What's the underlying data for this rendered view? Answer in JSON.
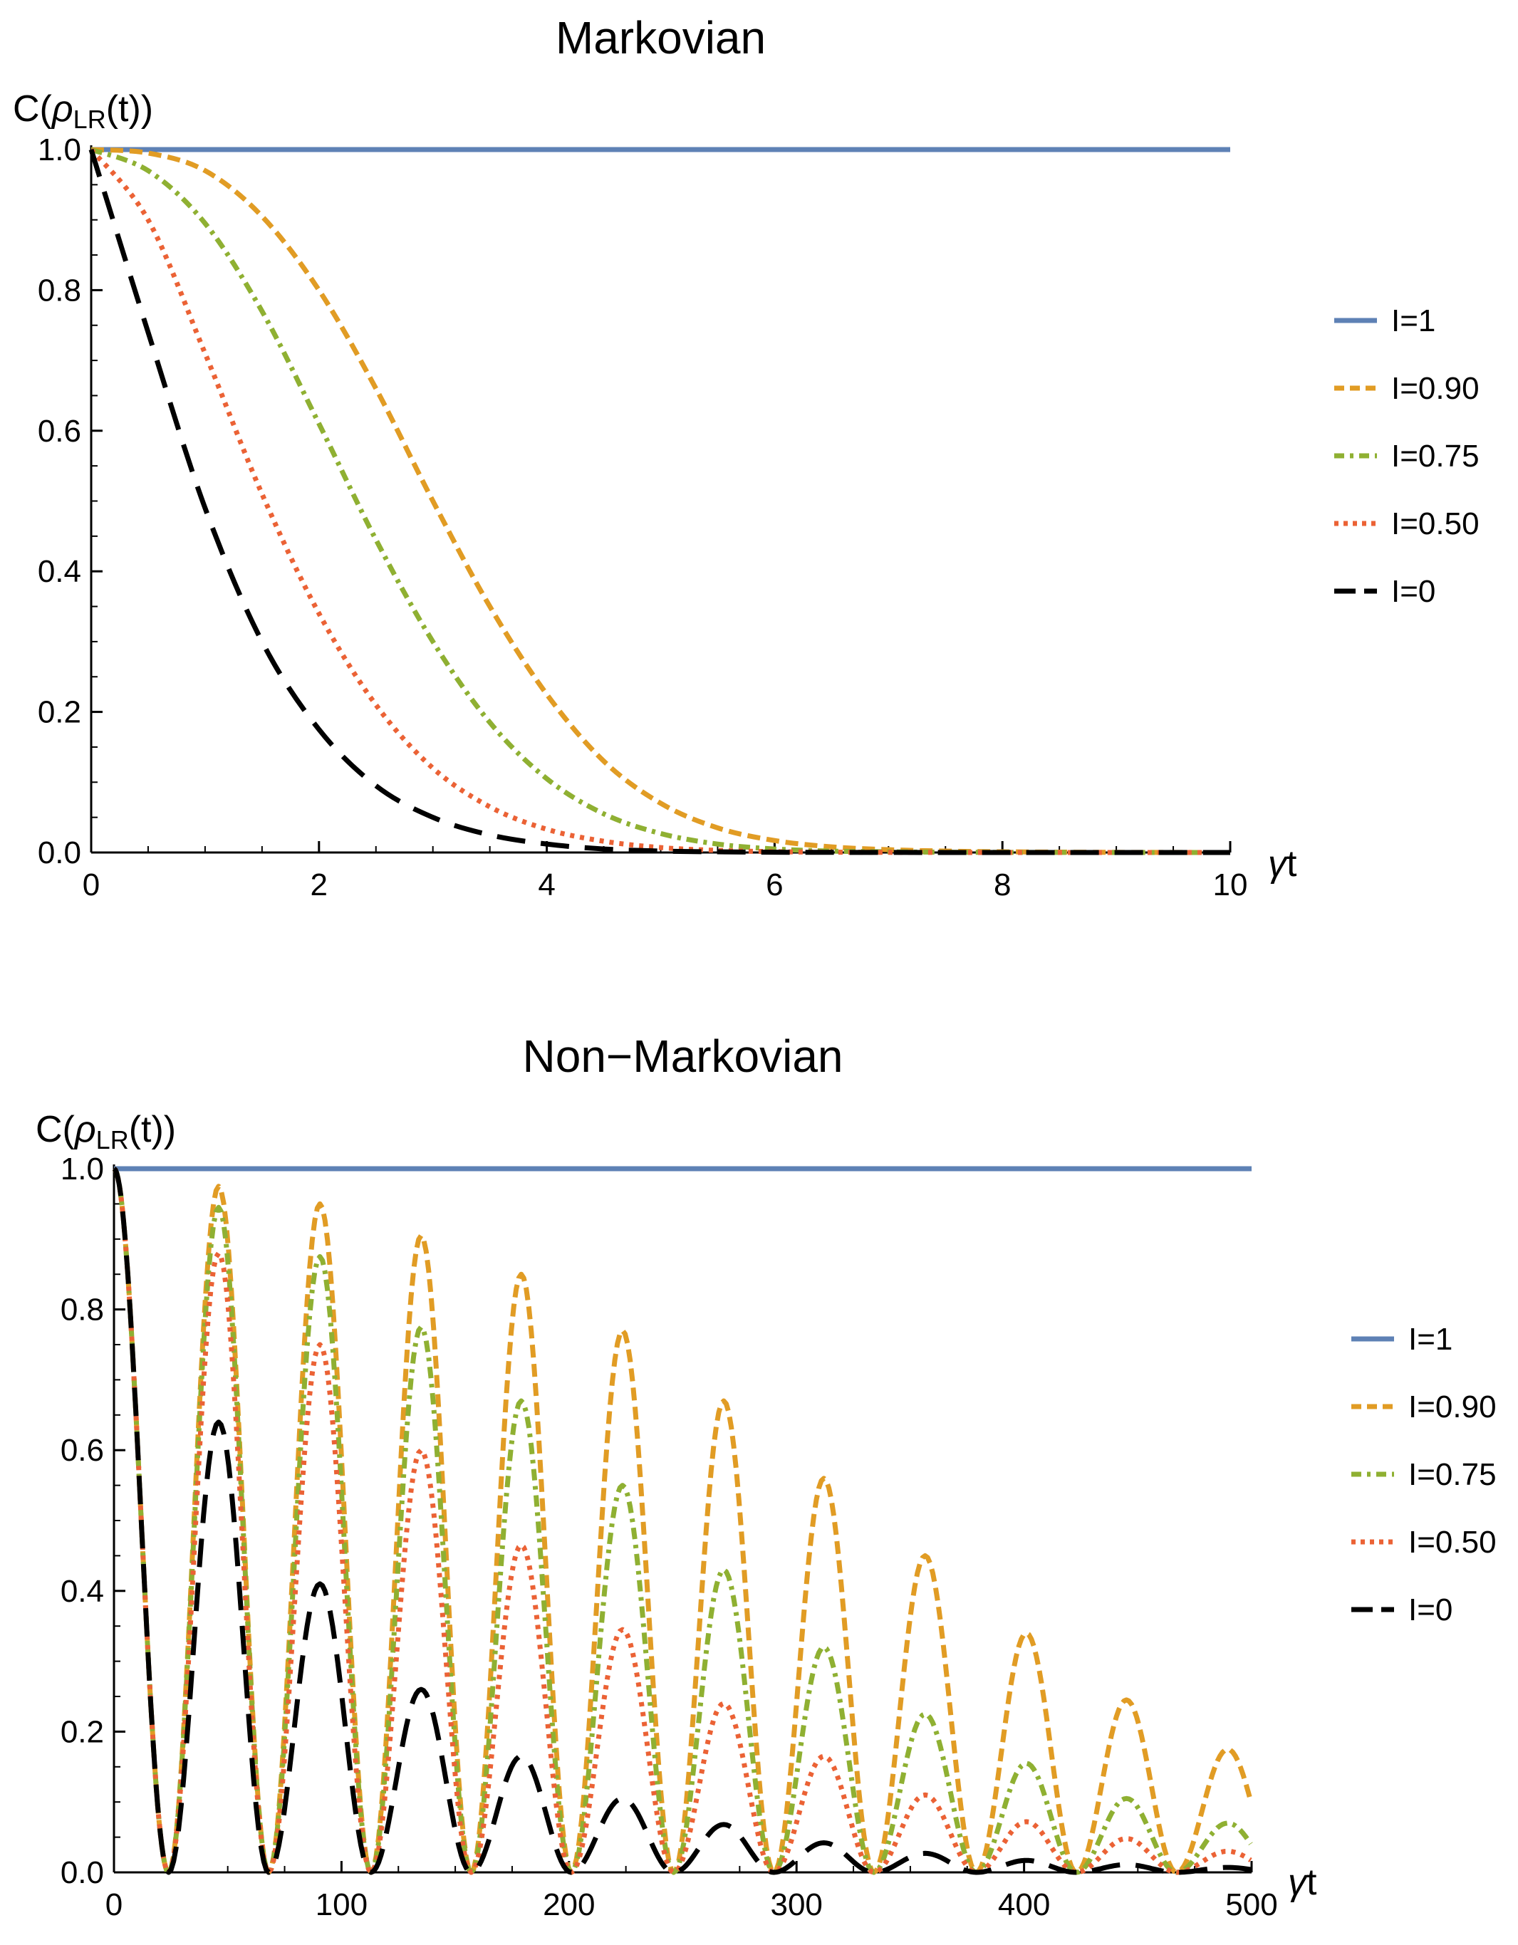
{
  "chart_data": [
    {
      "type": "line",
      "title": "Markovian",
      "xlabel": "γt",
      "ylabel": "C(ρLR(t))",
      "xlim": [
        0,
        10
      ],
      "ylim": [
        0,
        1
      ],
      "xticks": [
        "0",
        "2",
        "4",
        "6",
        "8",
        "10"
      ],
      "yticks": [
        "0.0",
        "0.2",
        "0.4",
        "0.6",
        "0.8",
        "1.0"
      ],
      "legend_position": "right",
      "x": [
        0,
        0.5,
        1,
        1.5,
        2,
        2.5,
        3,
        3.5,
        4,
        4.5,
        5,
        5.5,
        6,
        6.5,
        7,
        7.5,
        8,
        8.5,
        9,
        9.5,
        10
      ],
      "series": [
        {
          "name": "I=1",
          "color": "#5e81b5",
          "style": "solid",
          "values": [
            1,
            1,
            1,
            1,
            1,
            1,
            1,
            1,
            1,
            1,
            1,
            1,
            1,
            1,
            1,
            1,
            1,
            1,
            1,
            1,
            1
          ]
        },
        {
          "name": "I=0.90",
          "color": "#e19c24",
          "style": "dashed",
          "values": [
            1,
            0.995,
            0.97,
            0.905,
            0.8,
            0.66,
            0.5,
            0.35,
            0.225,
            0.13,
            0.07,
            0.035,
            0.017,
            0.008,
            0.004,
            0.002,
            0.001,
            0.0005,
            0.0002,
            0.0001,
            0
          ]
        },
        {
          "name": "I=0.75",
          "color": "#8fb032",
          "style": "dotdashed",
          "values": [
            1,
            0.97,
            0.895,
            0.77,
            0.61,
            0.445,
            0.3,
            0.185,
            0.105,
            0.055,
            0.027,
            0.012,
            0.005,
            0.002,
            0.001,
            0.0004,
            0.0002,
            0.0001,
            0,
            0,
            0
          ]
        },
        {
          "name": "I=0.50",
          "color": "#eb6235",
          "style": "dotted",
          "values": [
            1,
            0.9,
            0.71,
            0.51,
            0.34,
            0.21,
            0.12,
            0.065,
            0.033,
            0.016,
            0.007,
            0.003,
            0.0012,
            0.0005,
            0.0002,
            0.0001,
            0,
            0,
            0,
            0,
            0
          ]
        },
        {
          "name": "I=0",
          "color": "#000000",
          "style": "longdash",
          "values": [
            1,
            0.74,
            0.49,
            0.3,
            0.175,
            0.095,
            0.05,
            0.025,
            0.012,
            0.005,
            0.002,
            0.001,
            0.0004,
            0.0002,
            0.0001,
            0,
            0,
            0,
            0,
            0,
            0
          ]
        }
      ]
    },
    {
      "type": "line",
      "title": "Non−Markovian",
      "xlabel": "γt",
      "ylabel": "C(ρLR(t))",
      "xlim": [
        0,
        500
      ],
      "ylim": [
        0,
        1
      ],
      "xticks": [
        "0",
        "100",
        "200",
        "300",
        "400",
        "500"
      ],
      "yticks": [
        "0.0",
        "0.2",
        "0.4",
        "0.6",
        "0.8",
        "1.0"
      ],
      "legend_position": "right",
      "oscillation": {
        "zeros": [
          0,
          24,
          68,
          113,
          157,
          201,
          246,
          290,
          334,
          379,
          423,
          467,
          512
        ],
        "description_note": ""
      },
      "series": [
        {
          "name": "I=1",
          "color": "#5e81b5",
          "style": "solid",
          "peaks": [
            1,
            1,
            1,
            1,
            1,
            1,
            1,
            1,
            1,
            1,
            1,
            1
          ],
          "flat": true
        },
        {
          "name": "I=0.90",
          "color": "#e19c24",
          "style": "dashed",
          "peaks": [
            1,
            0.975,
            0.95,
            0.905,
            0.85,
            0.77,
            0.67,
            0.56,
            0.45,
            0.34,
            0.245,
            0.175
          ]
        },
        {
          "name": "I=0.75",
          "color": "#8fb032",
          "style": "dotdashed",
          "peaks": [
            1,
            0.945,
            0.875,
            0.775,
            0.67,
            0.55,
            0.43,
            0.32,
            0.225,
            0.155,
            0.105,
            0.07
          ]
        },
        {
          "name": "I=0.50",
          "color": "#eb6235",
          "style": "dotted",
          "peaks": [
            1,
            0.88,
            0.75,
            0.6,
            0.465,
            0.345,
            0.24,
            0.165,
            0.11,
            0.072,
            0.048,
            0.03
          ]
        },
        {
          "name": "I=0",
          "color": "#000000",
          "style": "longdash",
          "peaks": [
            1,
            0.64,
            0.41,
            0.26,
            0.165,
            0.105,
            0.068,
            0.042,
            0.027,
            0.017,
            0.011,
            0.007
          ]
        }
      ]
    }
  ]
}
